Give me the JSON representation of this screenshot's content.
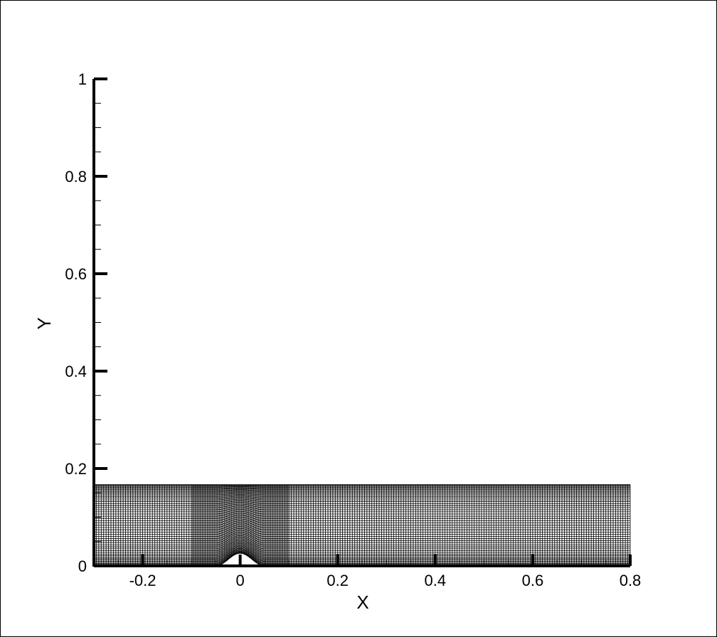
{
  "chart_data": {
    "type": "mesh",
    "xlabel": "X",
    "ylabel": "Y",
    "xlim": [
      -0.3,
      0.8
    ],
    "ylim": [
      0,
      1
    ],
    "x_ticks": [
      "-0.2",
      "0",
      "0.2",
      "0.4",
      "0.6",
      "0.8"
    ],
    "x_tick_values": [
      -0.2,
      0,
      0.2,
      0.4,
      0.6,
      0.8
    ],
    "y_ticks": [
      "0",
      "0.2",
      "0.4",
      "0.6",
      "0.8",
      "1"
    ],
    "y_tick_values": [
      0,
      0.2,
      0.4,
      0.6,
      0.8,
      1
    ],
    "minor_tick_step": 0.05,
    "grid": false,
    "mesh": {
      "x_range": [
        -0.3,
        0.8
      ],
      "y_top": 0.167,
      "bump_center": 0,
      "bump_half_width": 0.05,
      "bump_height": 0.026,
      "line_color": "#000000"
    }
  }
}
